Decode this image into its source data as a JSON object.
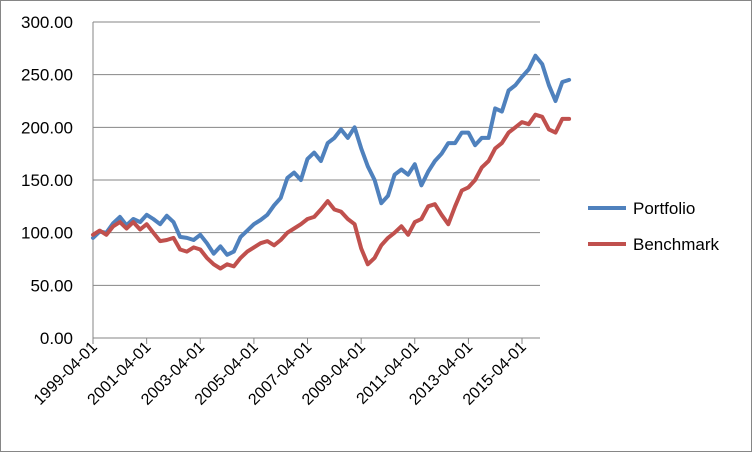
{
  "chart_data": {
    "type": "line",
    "title": "",
    "xlabel": "",
    "ylabel": "",
    "ylim": [
      0,
      300
    ],
    "yticks": [
      "0.00",
      "50.00",
      "100.00",
      "150.00",
      "200.00",
      "250.00",
      "300.00"
    ],
    "xticks": [
      "1999-04-01",
      "2001-04-01",
      "2003-04-01",
      "2005-04-01",
      "2007-04-01",
      "2009-04-01",
      "2011-04-01",
      "2013-04-01",
      "2015-04-01"
    ],
    "grid": "horizontal",
    "legend_position": "right",
    "series": [
      {
        "name": "Portfolio",
        "color": "#4F81BD",
        "points": [
          [
            "1999-04-01",
            95
          ],
          [
            "1999-07-01",
            101
          ],
          [
            "1999-10-01",
            100
          ],
          [
            "2000-01-01",
            109
          ],
          [
            "2000-04-01",
            115
          ],
          [
            "2000-07-01",
            107
          ],
          [
            "2000-10-01",
            113
          ],
          [
            "2001-01-01",
            110
          ],
          [
            "2001-04-01",
            117
          ],
          [
            "2001-07-01",
            113
          ],
          [
            "2001-10-01",
            108
          ],
          [
            "2002-01-01",
            116
          ],
          [
            "2002-04-01",
            110
          ],
          [
            "2002-07-01",
            96
          ],
          [
            "2002-10-01",
            95
          ],
          [
            "2003-01-01",
            93
          ],
          [
            "2003-04-01",
            98
          ],
          [
            "2003-07-01",
            90
          ],
          [
            "2003-10-01",
            80
          ],
          [
            "2004-01-01",
            87
          ],
          [
            "2004-04-01",
            79
          ],
          [
            "2004-07-01",
            82
          ],
          [
            "2004-10-01",
            96
          ],
          [
            "2005-01-01",
            102
          ],
          [
            "2005-04-01",
            108
          ],
          [
            "2005-07-01",
            112
          ],
          [
            "2005-10-01",
            117
          ],
          [
            "2006-01-01",
            126
          ],
          [
            "2006-04-01",
            133
          ],
          [
            "2006-07-01",
            152
          ],
          [
            "2006-10-01",
            157
          ],
          [
            "2007-01-01",
            150
          ],
          [
            "2007-04-01",
            170
          ],
          [
            "2007-07-01",
            176
          ],
          [
            "2007-10-01",
            168
          ],
          [
            "2008-01-01",
            185
          ],
          [
            "2008-04-01",
            190
          ],
          [
            "2008-07-01",
            198
          ],
          [
            "2008-10-01",
            190
          ],
          [
            "2009-01-01",
            200
          ],
          [
            "2009-04-01",
            180
          ],
          [
            "2009-07-01",
            163
          ],
          [
            "2009-10-01",
            150
          ],
          [
            "2010-01-01",
            128
          ],
          [
            "2010-04-01",
            135
          ],
          [
            "2010-07-01",
            155
          ],
          [
            "2010-10-01",
            160
          ],
          [
            "2011-01-01",
            155
          ],
          [
            "2011-04-01",
            165
          ],
          [
            "2011-07-01",
            145
          ],
          [
            "2011-10-01",
            158
          ],
          [
            "2012-01-01",
            168
          ],
          [
            "2012-04-01",
            175
          ],
          [
            "2012-07-01",
            185
          ],
          [
            "2012-10-01",
            185
          ],
          [
            "2013-01-01",
            195
          ],
          [
            "2013-04-01",
            195
          ],
          [
            "2013-07-01",
            183
          ],
          [
            "2013-10-01",
            190
          ],
          [
            "2014-01-01",
            190
          ],
          [
            "2014-04-01",
            218
          ],
          [
            "2014-07-01",
            215
          ],
          [
            "2014-10-01",
            235
          ],
          [
            "2015-01-01",
            240
          ],
          [
            "2015-04-01",
            248
          ],
          [
            "2015-07-01",
            255
          ],
          [
            "2015-10-01",
            268
          ],
          [
            "2016-01-01",
            260
          ],
          [
            "2016-04-01",
            240
          ],
          [
            "2016-07-01",
            225
          ],
          [
            "2016-10-01",
            243
          ],
          [
            "2017-01-01",
            245
          ]
        ]
      },
      {
        "name": "Benchmark",
        "color": "#C0504D",
        "points": [
          [
            "1999-04-01",
            98
          ],
          [
            "1999-07-01",
            102
          ],
          [
            "1999-10-01",
            98
          ],
          [
            "2000-01-01",
            106
          ],
          [
            "2000-04-01",
            110
          ],
          [
            "2000-07-01",
            104
          ],
          [
            "2000-10-01",
            110
          ],
          [
            "2001-01-01",
            103
          ],
          [
            "2001-04-01",
            108
          ],
          [
            "2001-07-01",
            100
          ],
          [
            "2001-10-01",
            92
          ],
          [
            "2002-01-01",
            93
          ],
          [
            "2002-04-01",
            95
          ],
          [
            "2002-07-01",
            84
          ],
          [
            "2002-10-01",
            82
          ],
          [
            "2003-01-01",
            86
          ],
          [
            "2003-04-01",
            84
          ],
          [
            "2003-07-01",
            76
          ],
          [
            "2003-10-01",
            70
          ],
          [
            "2004-01-01",
            66
          ],
          [
            "2004-04-01",
            70
          ],
          [
            "2004-07-01",
            68
          ],
          [
            "2004-10-01",
            76
          ],
          [
            "2005-01-01",
            82
          ],
          [
            "2005-04-01",
            86
          ],
          [
            "2005-07-01",
            90
          ],
          [
            "2005-10-01",
            92
          ],
          [
            "2006-01-01",
            88
          ],
          [
            "2006-04-01",
            93
          ],
          [
            "2006-07-01",
            100
          ],
          [
            "2006-10-01",
            104
          ],
          [
            "2007-01-01",
            108
          ],
          [
            "2007-04-01",
            113
          ],
          [
            "2007-07-01",
            115
          ],
          [
            "2007-10-01",
            122
          ],
          [
            "2008-01-01",
            130
          ],
          [
            "2008-04-01",
            122
          ],
          [
            "2008-07-01",
            120
          ],
          [
            "2008-10-01",
            113
          ],
          [
            "2009-01-01",
            108
          ],
          [
            "2009-04-01",
            85
          ],
          [
            "2009-07-01",
            70
          ],
          [
            "2009-10-01",
            76
          ],
          [
            "2010-01-01",
            88
          ],
          [
            "2010-04-01",
            95
          ],
          [
            "2010-07-01",
            100
          ],
          [
            "2010-10-01",
            106
          ],
          [
            "2011-01-01",
            98
          ],
          [
            "2011-04-01",
            110
          ],
          [
            "2011-07-01",
            113
          ],
          [
            "2011-10-01",
            125
          ],
          [
            "2012-01-01",
            127
          ],
          [
            "2012-04-01",
            117
          ],
          [
            "2012-07-01",
            108
          ],
          [
            "2012-10-01",
            125
          ],
          [
            "2013-01-01",
            140
          ],
          [
            "2013-04-01",
            143
          ],
          [
            "2013-07-01",
            150
          ],
          [
            "2013-10-01",
            162
          ],
          [
            "2014-01-01",
            168
          ],
          [
            "2014-04-01",
            180
          ],
          [
            "2014-07-01",
            185
          ],
          [
            "2014-10-01",
            195
          ],
          [
            "2015-01-01",
            200
          ],
          [
            "2015-04-01",
            205
          ],
          [
            "2015-07-01",
            203
          ],
          [
            "2015-10-01",
            212
          ],
          [
            "2016-01-01",
            210
          ],
          [
            "2016-04-01",
            198
          ],
          [
            "2016-07-01",
            195
          ],
          [
            "2016-10-01",
            208
          ],
          [
            "2017-01-01",
            208
          ]
        ]
      }
    ]
  }
}
